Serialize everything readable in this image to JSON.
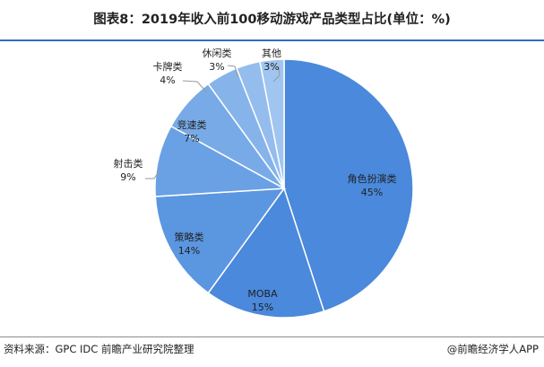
{
  "title": "图表8：2019年收入前100移动游戏产品类型占比(单位：%)",
  "source": "资料来源：GPC  IDC 前瞻产业研究院整理",
  "brand": "@前瞻经济学人APP",
  "colors": {
    "title_rule": "#2f6fbf",
    "slices": [
      "#4a89dc",
      "#4a89dc",
      "#5b96e0",
      "#6aa0e4",
      "#78aae7",
      "#86b4ea",
      "#94bdee",
      "#a0c5f0"
    ],
    "slice_stroke": "#ffffff",
    "leader_line": "#999999"
  },
  "chart_data": {
    "type": "pie",
    "title": "图表8：2019年收入前100移动游戏产品类型占比(单位：%)",
    "unit": "%",
    "start": "12 o'clock",
    "direction": "clockwise",
    "slices": [
      {
        "label": "角色扮演类",
        "value": 45,
        "value_label": "45%"
      },
      {
        "label": "MOBA",
        "value": 15,
        "value_label": "15%"
      },
      {
        "label": "策略类",
        "value": 14,
        "value_label": "14%"
      },
      {
        "label": "射击类",
        "value": 9,
        "value_label": "9%"
      },
      {
        "label": "竞速类",
        "value": 7,
        "value_label": "7%"
      },
      {
        "label": "卡牌类",
        "value": 4,
        "value_label": "4%"
      },
      {
        "label": "休闲类",
        "value": 3,
        "value_label": "3%"
      },
      {
        "label": "其他",
        "value": 3,
        "value_label": "3%"
      }
    ]
  }
}
